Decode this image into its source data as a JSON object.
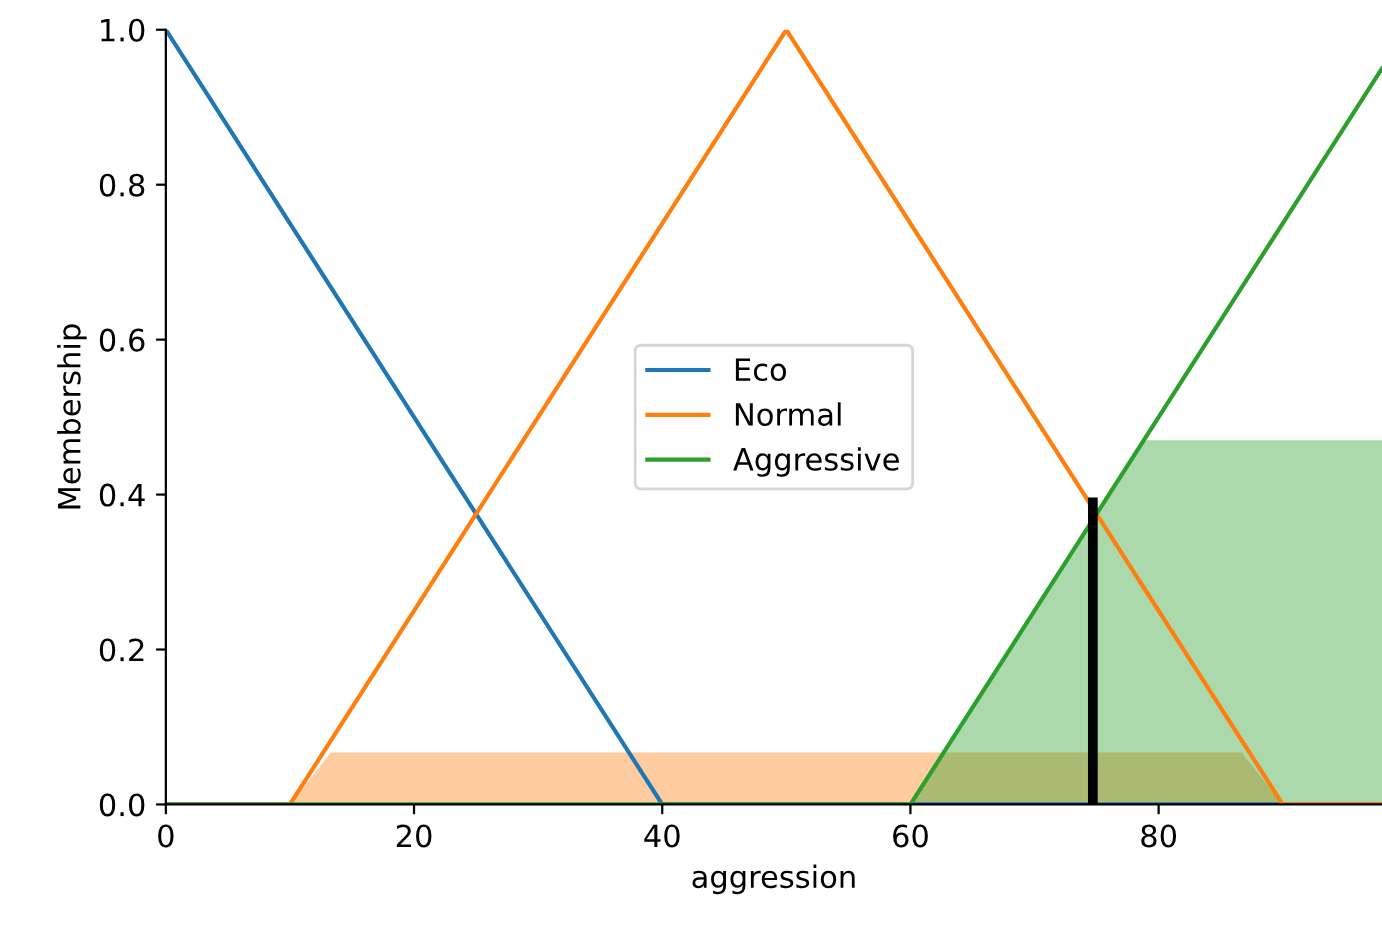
{
  "chart_data": {
    "type": "line",
    "xlabel": "aggression",
    "ylabel": "Membership",
    "xlim": [
      0,
      98
    ],
    "xticks": [
      0,
      20,
      40,
      60,
      80
    ],
    "ylim": [
      0,
      1.0
    ],
    "yticks": [
      {
        "value": 0,
        "label": "0.0"
      },
      {
        "value": 0.2,
        "label": "0.2"
      },
      {
        "value": 0.4,
        "label": "0.4"
      },
      {
        "value": 0.6,
        "label": "0.6"
      },
      {
        "value": 0.8,
        "label": "0.8"
      },
      {
        "value": 1.0,
        "label": "1.0"
      }
    ],
    "grid": false,
    "legend": "center",
    "series": [
      {
        "type": "area",
        "color": "#ff7f0e",
        "x": [
          10,
          13.3,
          86.7,
          90
        ],
        "values": [
          0,
          0.067,
          0.067,
          0
        ]
      },
      {
        "type": "area",
        "color": "#2ca02c",
        "x": [
          60,
          78.8,
          98
        ],
        "values": [
          0,
          0.47,
          0.47
        ]
      },
      {
        "name": "Eco",
        "color": "#1f77b4",
        "x": [
          0,
          40,
          98
        ],
        "values": [
          1,
          0,
          0
        ]
      },
      {
        "name": "Normal",
        "color": "#ff7f0e",
        "x": [
          0,
          10,
          50,
          90,
          98
        ],
        "values": [
          0,
          0,
          1,
          0,
          0
        ]
      },
      {
        "name": "Aggressive",
        "color": "#2ca02c",
        "x": [
          0,
          60,
          98
        ],
        "values": [
          0,
          0,
          0.95
        ]
      },
      {
        "color": "#000000",
        "x": [
          74.7,
          74.7
        ],
        "values": [
          0,
          0.39
        ]
      }
    ]
  }
}
